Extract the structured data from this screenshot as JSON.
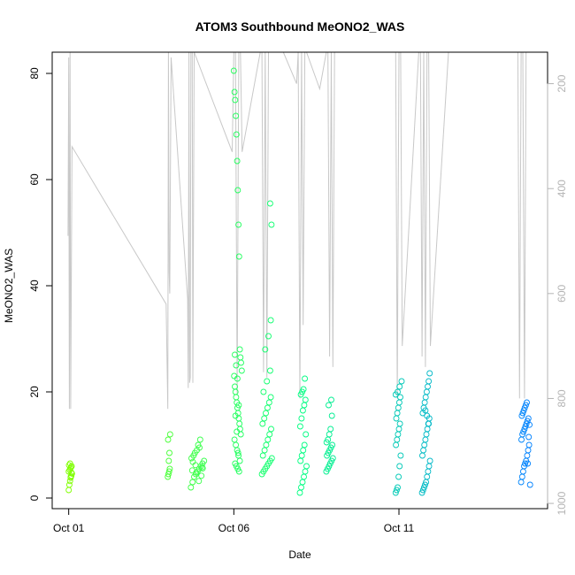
{
  "chart_data": {
    "type": "scatter",
    "title": "ATOM3 Southbound MeONO2_WAS",
    "xlabel": "Date",
    "ylabel": "MeONO2_WAS",
    "x_ticks": [
      "Oct 01",
      "Oct 06",
      "Oct 11"
    ],
    "x_tick_days": [
      1,
      6,
      11
    ],
    "xlim": [
      0.5,
      15.5
    ],
    "ylim": [
      -2,
      84
    ],
    "y_ticks": [
      0,
      20,
      40,
      60,
      80
    ],
    "y2_ticks": [
      200,
      400,
      600,
      800,
      1000
    ],
    "y2lim": [
      1010,
      140
    ],
    "grid": false,
    "legend": "none",
    "colors": {
      "point_start": "#80ff00",
      "point_mid": "#00ff80",
      "point_end": "#0080ff",
      "pressure_line": "#c8c8c8",
      "axis": "#000000",
      "secondary_axis": "#b4b4b4"
    },
    "series": [
      {
        "x": [
          1.0,
          1.02,
          1.04,
          1.06,
          1.08,
          1.1,
          1.0,
          1.03,
          1.05,
          1.07,
          1.09,
          1.01,
          1.04,
          1.06,
          1.08
        ],
        "y": [
          1.5,
          2.5,
          3.2,
          3.8,
          4.2,
          4.6,
          5.0,
          5.3,
          5.6,
          5.8,
          6.0,
          6.2,
          6.5,
          4.0,
          4.8
        ]
      },
      {
        "x": [
          4.0,
          4.02,
          4.04,
          4.06,
          4.03,
          4.05,
          4.01,
          4.07
        ],
        "y": [
          4.0,
          4.5,
          5.0,
          5.5,
          7.0,
          8.5,
          11.0,
          12.0
        ]
      },
      {
        "x": [
          4.7,
          4.75,
          4.8,
          4.85,
          4.9,
          4.95,
          5.0,
          5.05,
          5.1,
          4.72,
          4.78,
          4.82,
          4.88,
          4.92,
          4.98,
          5.02,
          4.74,
          4.84,
          4.94,
          5.04,
          4.76,
          4.86,
          4.96,
          5.06
        ],
        "y": [
          2.0,
          3.0,
          4.0,
          4.5,
          5.0,
          5.5,
          6.0,
          6.5,
          7.0,
          7.5,
          8.0,
          8.5,
          9.0,
          10.0,
          11.0,
          4.2,
          5.2,
          6.2,
          3.2,
          5.8,
          6.8,
          4.8,
          9.5,
          5.6
        ]
      },
      {
        "x": [
          6.0,
          6.02,
          6.04,
          6.06,
          6.08,
          6.1,
          6.12,
          6.14,
          6.16,
          6.18,
          6.2,
          6.22,
          6.24,
          6.01,
          6.03,
          6.05,
          6.07,
          6.09,
          6.11,
          6.13,
          6.15,
          6.17,
          6.19,
          6.21,
          6.02,
          6.06,
          6.1,
          6.14,
          6.18,
          6.04,
          6.08,
          6.12,
          6.16,
          6.03,
          6.07,
          6.11,
          6.15,
          6.05,
          6.09,
          6.13
        ],
        "y": [
          80.5,
          76.5,
          75.0,
          72.0,
          68.5,
          63.5,
          58.0,
          51.5,
          45.5,
          28.0,
          26.5,
          25.5,
          24.0,
          23.0,
          21.0,
          20.0,
          19.0,
          18.0,
          17.0,
          16.0,
          15.0,
          14.0,
          13.0,
          12.0,
          11.0,
          10.0,
          9.0,
          8.0,
          7.0,
          6.5,
          6.0,
          5.5,
          5.0,
          27.0,
          25.0,
          22.5,
          17.5,
          15.5,
          12.5,
          8.5
        ]
      },
      {
        "x": [
          6.85,
          6.9,
          6.95,
          7.0,
          7.05,
          7.1,
          7.15,
          6.88,
          6.93,
          6.98,
          7.03,
          7.08,
          7.13,
          6.87,
          6.92,
          6.97,
          7.02,
          7.07,
          7.12,
          6.9,
          7.0,
          7.1,
          6.95,
          7.05,
          7.12,
          7.14,
          7.1
        ],
        "y": [
          4.5,
          5.0,
          5.5,
          6.0,
          6.5,
          7.0,
          7.5,
          8.0,
          9.0,
          10.0,
          11.0,
          12.0,
          13.0,
          14.0,
          15.0,
          16.0,
          17.0,
          18.0,
          19.0,
          20.0,
          22.0,
          24.0,
          28.0,
          30.5,
          33.5,
          51.5,
          55.5
        ]
      },
      {
        "x": [
          8.0,
          8.04,
          8.08,
          8.12,
          8.16,
          8.2,
          8.02,
          8.06,
          8.1,
          8.14,
          8.18,
          8.01,
          8.05,
          8.09,
          8.13,
          8.17,
          8.03,
          8.07,
          8.11,
          8.15
        ],
        "y": [
          1.0,
          2.0,
          3.0,
          4.0,
          5.0,
          6.0,
          7.0,
          8.0,
          9.0,
          10.0,
          12.0,
          13.5,
          15.0,
          16.5,
          17.5,
          18.5,
          19.5,
          20.0,
          20.5,
          22.5
        ]
      },
      {
        "x": [
          8.8,
          8.84,
          8.88,
          8.92,
          8.96,
          9.0,
          8.82,
          8.86,
          8.9,
          8.94,
          8.98,
          8.81,
          8.85,
          8.89,
          8.93,
          8.97,
          8.87,
          8.95
        ],
        "y": [
          5.0,
          5.5,
          6.0,
          6.5,
          7.0,
          7.5,
          8.0,
          8.5,
          9.0,
          9.5,
          10.0,
          10.5,
          11.0,
          12.0,
          13.0,
          15.5,
          17.5,
          18.5
        ]
      },
      {
        "x": [
          10.9,
          10.93,
          10.96,
          10.99,
          11.02,
          11.05,
          10.91,
          10.94,
          10.97,
          11.0,
          11.03,
          10.92,
          10.95,
          10.98,
          11.01,
          11.04,
          10.9,
          10.96,
          11.02,
          11.08
        ],
        "y": [
          1.0,
          1.5,
          2.0,
          4.0,
          6.0,
          8.0,
          10.0,
          11.0,
          12.0,
          13.0,
          14.0,
          15.0,
          16.0,
          17.0,
          18.0,
          19.0,
          19.5,
          20.0,
          21.0,
          22.0
        ]
      },
      {
        "x": [
          11.7,
          11.73,
          11.76,
          11.79,
          11.82,
          11.85,
          11.88,
          11.91,
          11.94,
          11.71,
          11.74,
          11.77,
          11.8,
          11.83,
          11.86,
          11.89,
          11.92,
          11.72,
          11.75,
          11.78,
          11.81,
          11.84,
          11.87,
          11.9,
          11.93,
          11.8,
          11.85,
          11.9
        ],
        "y": [
          1.0,
          1.5,
          2.0,
          2.5,
          3.0,
          4.0,
          5.0,
          6.0,
          7.0,
          8.0,
          9.0,
          10.0,
          11.0,
          12.0,
          13.0,
          14.0,
          15.0,
          16.0,
          17.0,
          18.0,
          19.0,
          20.0,
          21.0,
          22.0,
          23.5,
          16.5,
          15.5,
          14.0
        ]
      },
      {
        "x": [
          14.7,
          14.73,
          14.76,
          14.79,
          14.82,
          14.85,
          14.88,
          14.91,
          14.94,
          14.71,
          14.74,
          14.77,
          14.8,
          14.83,
          14.86,
          14.89,
          14.92,
          14.72,
          14.75,
          14.78,
          14.81,
          14.84,
          14.87,
          14.9,
          14.93,
          14.95,
          14.97
        ],
        "y": [
          3.0,
          4.0,
          5.0,
          6.0,
          6.5,
          7.0,
          8.0,
          9.0,
          10.0,
          11.0,
          12.0,
          12.5,
          13.0,
          13.5,
          14.0,
          14.5,
          15.0,
          15.5,
          16.0,
          16.5,
          17.0,
          17.5,
          18.0,
          6.5,
          11.5,
          13.8,
          2.5
        ]
      }
    ],
    "pressure_line": {
      "x": [
        0.98,
        1.0,
        1.02,
        1.04,
        1.06,
        1.1,
        3.95,
        4.0,
        4.02,
        4.04,
        4.06,
        4.1,
        4.6,
        4.62,
        4.64,
        4.66,
        4.68,
        4.7,
        4.72,
        4.74,
        4.76,
        4.8,
        5.95,
        6.0,
        6.05,
        6.1,
        6.15,
        6.2,
        6.25,
        6.8,
        6.85,
        6.9,
        6.95,
        7.0,
        7.05,
        7.1,
        7.5,
        7.9,
        7.95,
        8.0,
        8.05,
        8.1,
        8.15,
        8.2,
        8.6,
        8.8,
        8.85,
        8.9,
        8.95,
        9.0,
        9.05,
        10.85,
        10.9,
        10.95,
        11.0,
        11.05,
        11.1,
        11.6,
        11.65,
        11.7,
        11.75,
        11.8,
        11.85,
        11.9,
        11.95,
        12.5,
        14.6,
        14.65,
        14.7,
        14.75,
        14.8,
        14.85,
        14.9
      ],
      "p": [
        490,
        150,
        820,
        140,
        820,
        320,
        620,
        820,
        140,
        560,
        600,
        150,
        610,
        780,
        140,
        770,
        760,
        140,
        140,
        140,
        770,
        140,
        330,
        140,
        140,
        790,
        140,
        140,
        330,
        140,
        140,
        750,
        140,
        760,
        140,
        140,
        140,
        200,
        140,
        800,
        140,
        660,
        140,
        140,
        210,
        140,
        140,
        720,
        140,
        740,
        140,
        140,
        140,
        800,
        140,
        140,
        700,
        140,
        140,
        720,
        140,
        740,
        140,
        140,
        700,
        140,
        140,
        800,
        140,
        140,
        800,
        140,
        140
      ]
    }
  }
}
